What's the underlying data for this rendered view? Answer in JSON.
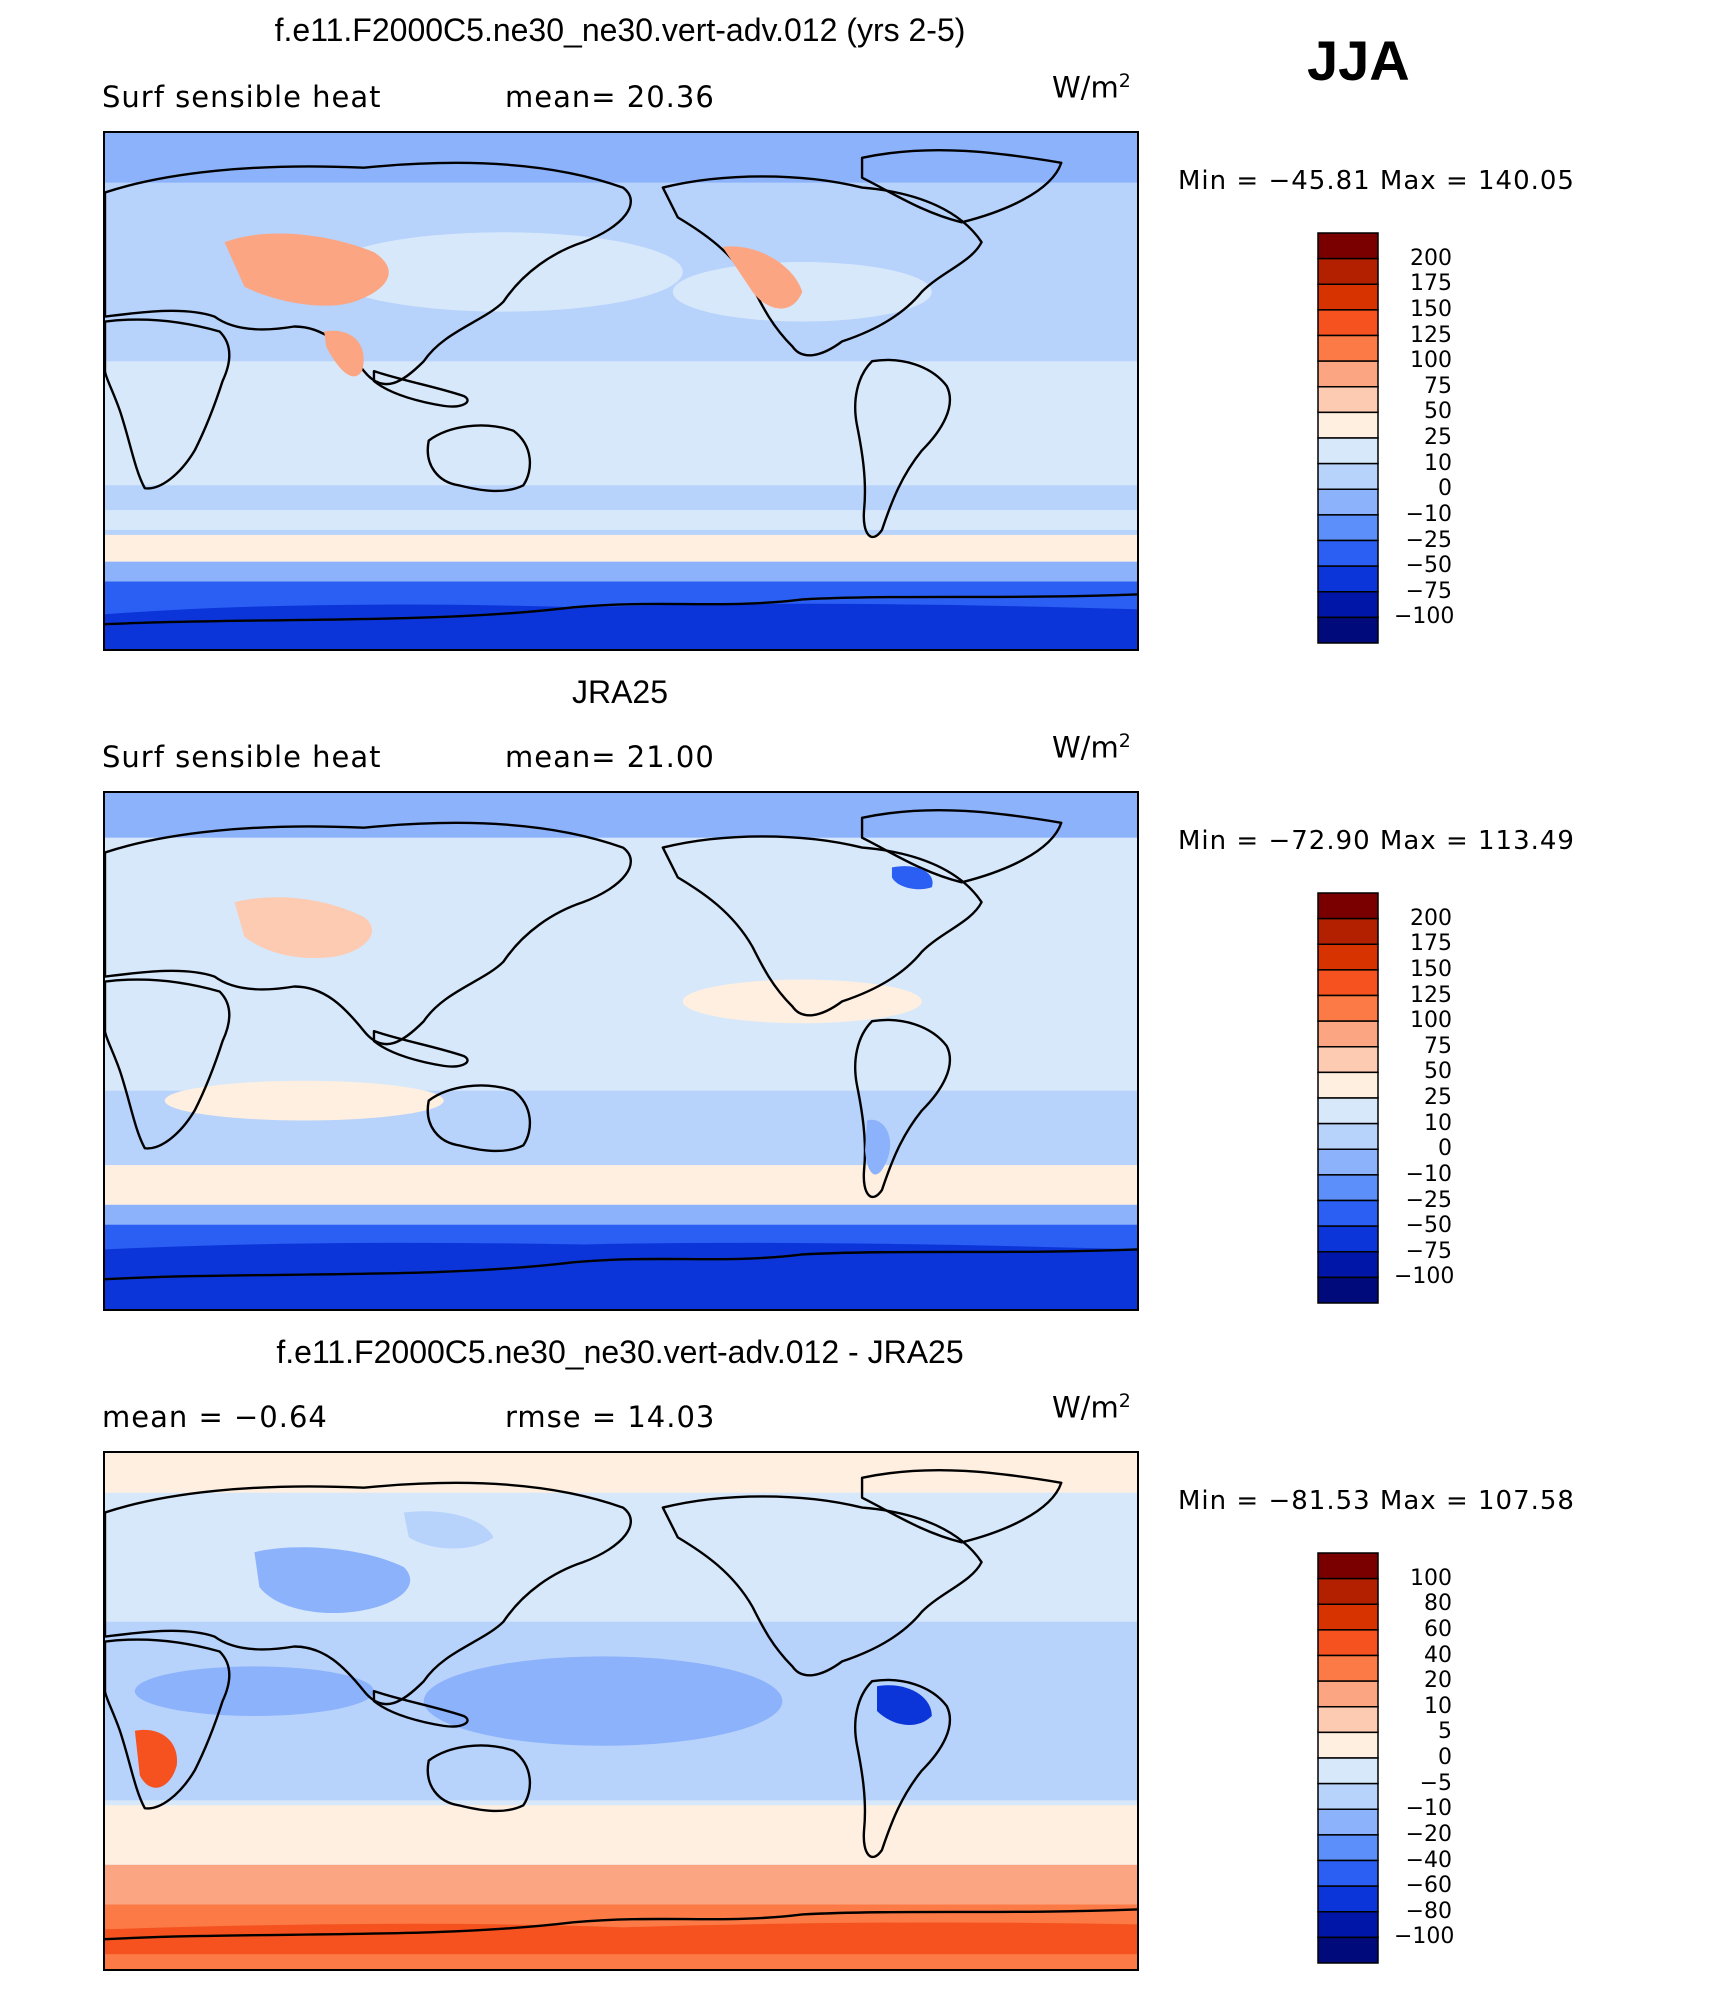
{
  "season": "JJA",
  "panels": [
    {
      "title": "f.e11.F2000C5.ne30_ne30.vert-adv.012 (yrs 2-5)",
      "left_label": "Surf  sensible  heat",
      "mid_label": "mean=   20.36",
      "unit_base": "W/m",
      "unit_sup": "2",
      "minmax": "Min  =  −45.81  Max  =  140.05",
      "colorbar": [
        "200",
        "175",
        "150",
        "125",
        "100",
        "75",
        "50",
        "25",
        "10",
        "0",
        "−10",
        "−25",
        "−50",
        "−75",
        "−100"
      ],
      "colors": [
        "#7a0000",
        "#b22000",
        "#d63300",
        "#f5521f",
        "#fb7a46",
        "#fca583",
        "#fdcab2",
        "#feefe0",
        "#d7e8fb",
        "#b7d2fb",
        "#8cb2fb",
        "#5c8ffa",
        "#2b5ef2",
        "#0b35d9",
        "#0016a8",
        "#000a7a"
      ]
    },
    {
      "title": "JRA25",
      "left_label": "Surf  sensible  heat",
      "mid_label": "mean=   21.00",
      "unit_base": "W/m",
      "unit_sup": "2",
      "minmax": "Min  =  −72.90  Max  =  113.49",
      "colorbar": [
        "200",
        "175",
        "150",
        "125",
        "100",
        "75",
        "50",
        "25",
        "10",
        "0",
        "−10",
        "−25",
        "−50",
        "−75",
        "−100"
      ],
      "colors": [
        "#7a0000",
        "#b22000",
        "#d63300",
        "#f5521f",
        "#fb7a46",
        "#fca583",
        "#fdcab2",
        "#feefe0",
        "#d7e8fb",
        "#b7d2fb",
        "#8cb2fb",
        "#5c8ffa",
        "#2b5ef2",
        "#0b35d9",
        "#0016a8",
        "#000a7a"
      ]
    },
    {
      "title": "f.e11.F2000C5.ne30_ne30.vert-adv.012 - JRA25",
      "left_label": "mean  =    −0.64",
      "mid_label": "rmse  =    14.03",
      "unit_base": "W/m",
      "unit_sup": "2",
      "minmax": "Min  =  −81.53  Max  =  107.58",
      "colorbar": [
        "100",
        "80",
        "60",
        "40",
        "20",
        "10",
        "5",
        "0",
        "−5",
        "−10",
        "−20",
        "−40",
        "−60",
        "−80",
        "−100"
      ],
      "colors": [
        "#7a0000",
        "#b22000",
        "#d63300",
        "#f5521f",
        "#fb7a46",
        "#fca583",
        "#fdcab2",
        "#feefe0",
        "#d7e8fb",
        "#b7d2fb",
        "#8cb2fb",
        "#5c8ffa",
        "#2b5ef2",
        "#0b35d9",
        "#0016a8",
        "#000a7a"
      ]
    }
  ]
}
